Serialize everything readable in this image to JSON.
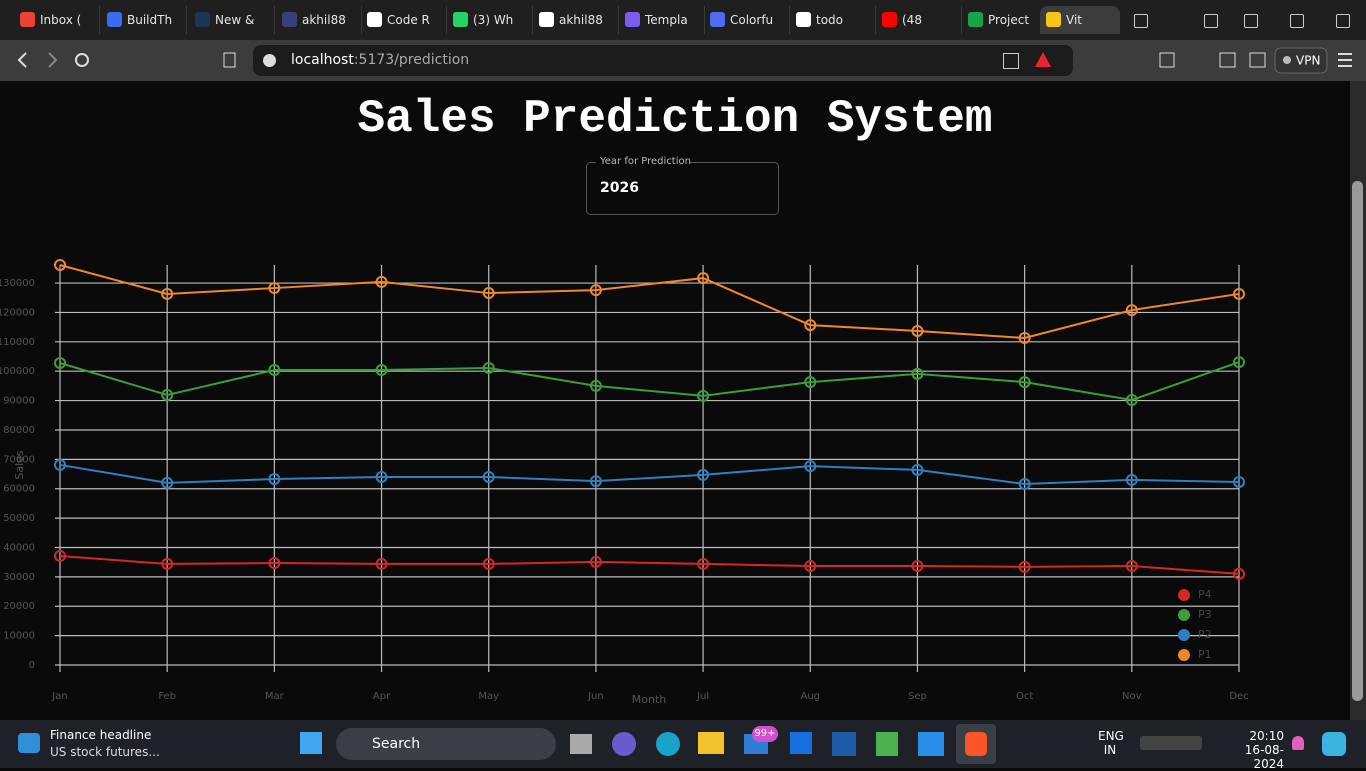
{
  "browser": {
    "tabs": [
      "Inbox (",
      "BuildTh",
      "New &",
      "akhil88",
      "Code R",
      "(3) Wh",
      "akhil88",
      "Templa",
      "Colorfu",
      "todo",
      "(48",
      "Project",
      "Vit"
    ],
    "address": {
      "host": "localhost",
      "path": ":5173/prediction"
    },
    "vpn": "VPN"
  },
  "page": {
    "title": "Sales Prediction System",
    "year_input": {
      "label": "Year for Prediction",
      "value": "2026"
    }
  },
  "chart_data": {
    "type": "line",
    "x_label": "Month",
    "y_label": "Sales",
    "categories": [
      "Jan",
      "Feb",
      "Mar",
      "Apr",
      "May",
      "Jun",
      "Jul",
      "Aug",
      "Sep",
      "Oct",
      "Nov",
      "Dec"
    ],
    "series": [
      {
        "name": "P4",
        "color": "#d62728",
        "values": [
          37100,
          34400,
          34700,
          34400,
          34400,
          35100,
          34400,
          33700,
          33700,
          33400,
          33700,
          31000
        ]
      },
      {
        "name": "P3",
        "color": "#3a9e3a",
        "values": [
          102800,
          91900,
          100400,
          100400,
          101100,
          95000,
          91600,
          96300,
          99100,
          96300,
          90200,
          103100
        ]
      },
      {
        "name": "P2",
        "color": "#2f7fc1",
        "values": [
          68100,
          62000,
          63300,
          64000,
          64000,
          62600,
          64700,
          67700,
          66400,
          61600,
          63000,
          62300
        ]
      },
      {
        "name": "P1",
        "color": "#f0882a",
        "values": [
          136150,
          126300,
          128300,
          130400,
          126600,
          127600,
          131700,
          115700,
          113700,
          111300,
          120800,
          126300
        ]
      }
    ],
    "ylim": [
      0,
      136150
    ],
    "yticks": [
      0,
      10000,
      20000,
      30000,
      40000,
      50000,
      60000,
      70000,
      80000,
      90000,
      100000,
      110000,
      120000,
      130000
    ],
    "grid": true,
    "legend": "bottom-right"
  },
  "taskbar": {
    "news": {
      "title": "Finance headline",
      "text": "US stock futures..."
    },
    "search": "Search",
    "mail_badge": "99+",
    "language": [
      "ENG",
      "IN"
    ],
    "time": "20:10",
    "date": "16-08-2024"
  }
}
